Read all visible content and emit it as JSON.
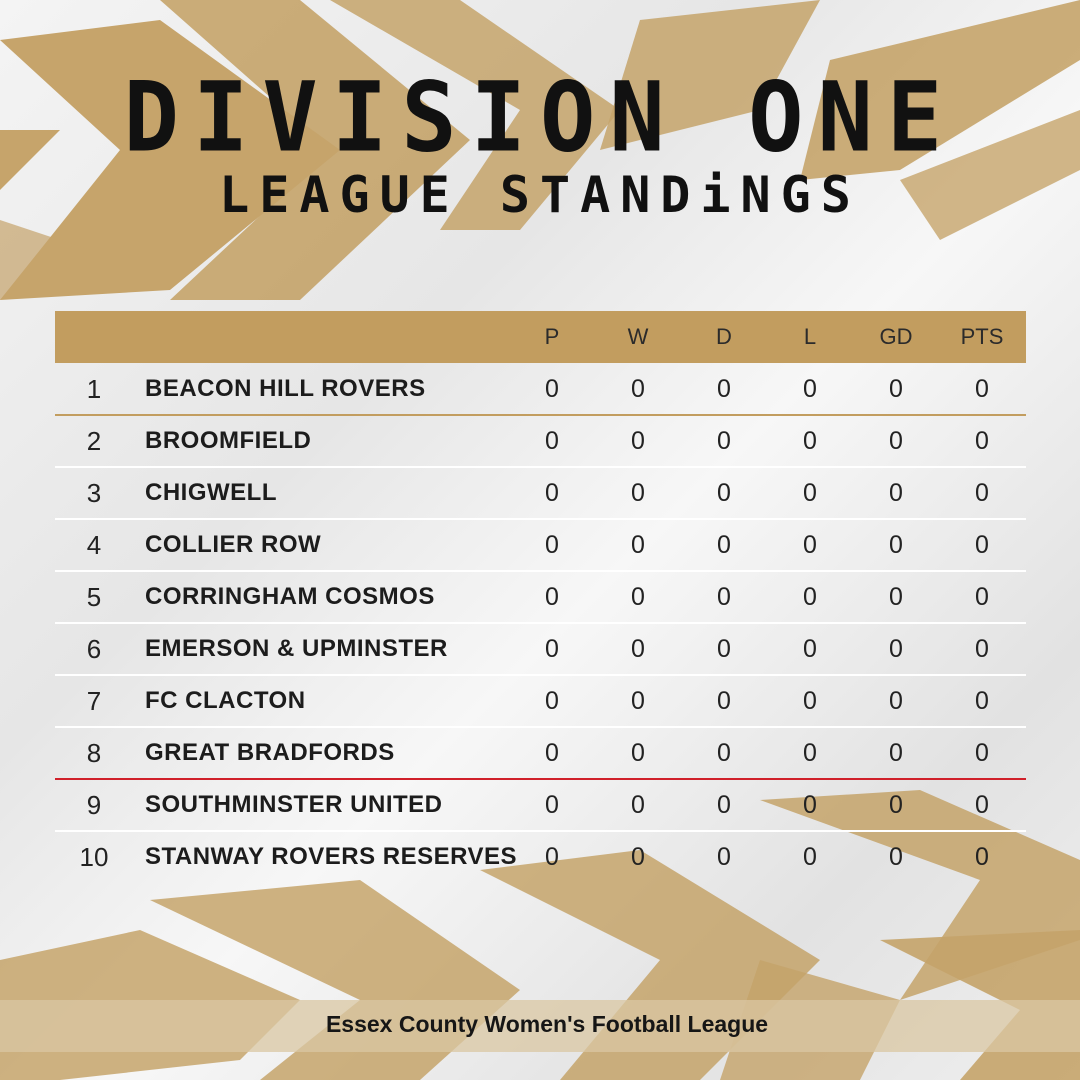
{
  "title": "DIVISION ONE",
  "subtitle": "LEAGUE STANDiNGS",
  "columns": [
    "P",
    "W",
    "D",
    "L",
    "GD",
    "PTS"
  ],
  "rows": [
    {
      "pos": "1",
      "team": "BEACON HILL ROVERS",
      "P": "0",
      "W": "0",
      "D": "0",
      "L": "0",
      "GD": "0",
      "PTS": "0"
    },
    {
      "pos": "2",
      "team": "BROOMFIELD",
      "P": "0",
      "W": "0",
      "D": "0",
      "L": "0",
      "GD": "0",
      "PTS": "0"
    },
    {
      "pos": "3",
      "team": "CHIGWELL",
      "P": "0",
      "W": "0",
      "D": "0",
      "L": "0",
      "GD": "0",
      "PTS": "0"
    },
    {
      "pos": "4",
      "team": "COLLIER ROW",
      "P": "0",
      "W": "0",
      "D": "0",
      "L": "0",
      "GD": "0",
      "PTS": "0"
    },
    {
      "pos": "5",
      "team": "CORRINGHAM COSMOS",
      "P": "0",
      "W": "0",
      "D": "0",
      "L": "0",
      "GD": "0",
      "PTS": "0"
    },
    {
      "pos": "6",
      "team": "EMERSON & UPMINSTER",
      "P": "0",
      "W": "0",
      "D": "0",
      "L": "0",
      "GD": "0",
      "PTS": "0"
    },
    {
      "pos": "7",
      "team": "FC CLACTON",
      "P": "0",
      "W": "0",
      "D": "0",
      "L": "0",
      "GD": "0",
      "PTS": "0"
    },
    {
      "pos": "8",
      "team": "GREAT BRADFORDS",
      "P": "0",
      "W": "0",
      "D": "0",
      "L": "0",
      "GD": "0",
      "PTS": "0"
    },
    {
      "pos": "9",
      "team": "SOUTHMINSTER UNITED",
      "P": "0",
      "W": "0",
      "D": "0",
      "L": "0",
      "GD": "0",
      "PTS": "0"
    },
    {
      "pos": "10",
      "team": "STANWAY ROVERS RESERVES",
      "P": "0",
      "W": "0",
      "D": "0",
      "L": "0",
      "GD": "0",
      "PTS": "0"
    }
  ],
  "footer": "Essex County Women's Football League",
  "colors": {
    "gold": "#c29d5f",
    "relegation_line": "#d0202a",
    "text": "#111111"
  }
}
